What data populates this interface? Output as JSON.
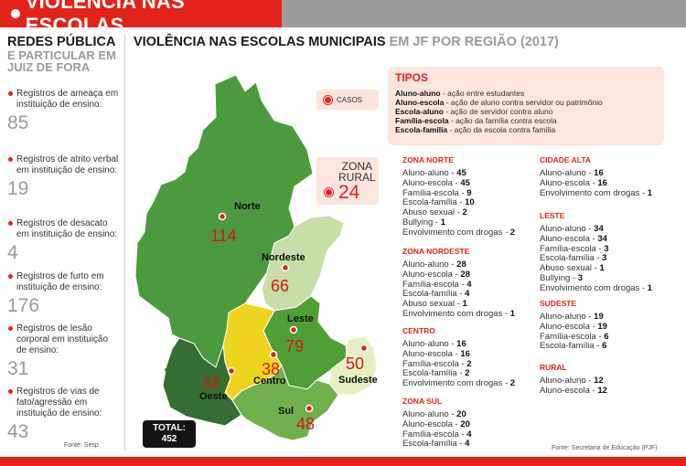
{
  "header": {
    "title": "VIOLÊNCIA NAS ESCOLAS"
  },
  "left": {
    "title": "REDES PÚBLICA",
    "subtitle": "E PARTICULAR EM JUIZ DE FORA",
    "stats": [
      {
        "label": "Registros de ameaça em instituição de ensino:",
        "value": "85"
      },
      {
        "label": "Registros de atrito verbal em instituição de ensino:",
        "value": "19"
      },
      {
        "label": "Registros de desacato em instituição de ensino:",
        "value": "4"
      },
      {
        "label": "Registros de furto em instituição de ensino:",
        "value": "176"
      },
      {
        "label": "Registros de lesão corporal em instituição de ensino:",
        "value": "31"
      },
      {
        "label": "Registros de vias de fato/agressão em instituição de ensino:",
        "value": "43"
      }
    ],
    "source": "Fonte: Sesp"
  },
  "main": {
    "title_dark": "VIOLÊNCIA NAS ESCOLAS MUNICIPAIS",
    "title_light": "EM JF POR REGIÃO (2017)"
  },
  "map": {
    "legend": "CASOS",
    "rural": {
      "label_line1": "ZONA",
      "label_line2": "RURAL",
      "value": "24"
    },
    "total": {
      "label": "TOTAL:",
      "value": "452"
    },
    "regions": [
      {
        "name": "Norte",
        "value": "114",
        "color": "#4c9a3e"
      },
      {
        "name": "Nordeste",
        "value": "66",
        "color": "#c7dea8"
      },
      {
        "name": "Leste",
        "value": "79",
        "color": "#4f9e36"
      },
      {
        "name": "Sudeste",
        "value": "50",
        "color": "#e6efc4"
      },
      {
        "name": "Centro",
        "value": "38",
        "color": "#efd51f"
      },
      {
        "name": "Oeste",
        "value": "33",
        "color": "#356d32"
      },
      {
        "name": "Sul",
        "value": "48",
        "color": "#6fb04c"
      }
    ],
    "colors": {
      "accent": "#e2231a",
      "panel": "#fbe5dd"
    }
  },
  "tipos": {
    "title": "TIPOS",
    "items": [
      {
        "term": "Aluno-aluno",
        "desc": " - ação entre estudantes"
      },
      {
        "term": "Aluno-escola",
        "desc": " - ação de aluno contra servidor ou patrimônio"
      },
      {
        "term": "Escola-aluno",
        "desc": " - ação de servidor contra aluno"
      },
      {
        "term": "Família-escola",
        "desc": " - ação da família contra escola"
      },
      {
        "term": "Escola-família",
        "desc": " - ação da escola contra família"
      }
    ]
  },
  "regions_detail": {
    "norte": {
      "title": "ZONA NORTE",
      "rows": [
        {
          "label": "Aluno-aluno - ",
          "value": "45"
        },
        {
          "label": "Aluno-escola - ",
          "value": "45"
        },
        {
          "label": "Família-escola - ",
          "value": "9"
        },
        {
          "label": "Escola-família - ",
          "value": "10"
        },
        {
          "label": "Abuso sexual - ",
          "value": "2"
        },
        {
          "label": "Bullying - ",
          "value": "1"
        },
        {
          "label": "Envolvimento com drogas - ",
          "value": "2"
        }
      ]
    },
    "nordeste": {
      "title": "ZONA NORDESTE",
      "rows": [
        {
          "label": "Aluno-aluno - ",
          "value": "28"
        },
        {
          "label": "Aluno-escola - ",
          "value": "28"
        },
        {
          "label": "Família-escola - ",
          "value": "4"
        },
        {
          "label": "Escola-família - ",
          "value": "4"
        },
        {
          "label": "Abuso sexual - ",
          "value": "1"
        },
        {
          "label": "Envolvimento com drogas - ",
          "value": "1"
        }
      ]
    },
    "centro": {
      "title": "CENTRO",
      "rows": [
        {
          "label": "Aluno-aluno - ",
          "value": "16"
        },
        {
          "label": "Aluno-escola - ",
          "value": "16"
        },
        {
          "label": "Família-escola - ",
          "value": "2"
        },
        {
          "label": "Escola-família - ",
          "value": "2"
        },
        {
          "label": "Envolvimento com drogas - ",
          "value": "2"
        }
      ]
    },
    "sul": {
      "title": "ZONA SUL",
      "rows": [
        {
          "label": "Aluno-aluno - ",
          "value": "20"
        },
        {
          "label": "Aluno-escola - ",
          "value": "20"
        },
        {
          "label": "Família-escola - ",
          "value": "4"
        },
        {
          "label": "Escola-família - ",
          "value": "4"
        }
      ]
    },
    "cidade_alta": {
      "title": "CIDADE ALTA",
      "rows": [
        {
          "label": "Aluno-aluno - ",
          "value": "16"
        },
        {
          "label": "Aluno-escola - ",
          "value": "16"
        },
        {
          "label": "Envolvimento com drogas - ",
          "value": "1"
        }
      ]
    },
    "leste": {
      "title": "LESTE",
      "rows": [
        {
          "label": "Aluno-aluno - ",
          "value": "34"
        },
        {
          "label": "Aluno-escola - ",
          "value": "34"
        },
        {
          "label": "Família-escola - ",
          "value": "3"
        },
        {
          "label": "Escola-família - ",
          "value": "3"
        },
        {
          "label": "Abuso sexual - ",
          "value": "1"
        },
        {
          "label": "Bullying - ",
          "value": "3"
        },
        {
          "label": "Envolvimento com drogas - ",
          "value": "1"
        }
      ]
    },
    "sudeste": {
      "title": "SUDESTE",
      "rows": [
        {
          "label": "Aluno-aluno - ",
          "value": "19"
        },
        {
          "label": "Aluno-escola - ",
          "value": "19"
        },
        {
          "label": "Família-escola - ",
          "value": "6"
        },
        {
          "label": "Escola-família - ",
          "value": "6"
        }
      ]
    },
    "rural": {
      "title": "RURAL",
      "rows": [
        {
          "label": "Aluno-aluno - ",
          "value": "12"
        },
        {
          "label": "Aluno-escola - ",
          "value": "12"
        }
      ]
    }
  },
  "right_source": "Fonte: Secretaria de Educação (PJF)"
}
